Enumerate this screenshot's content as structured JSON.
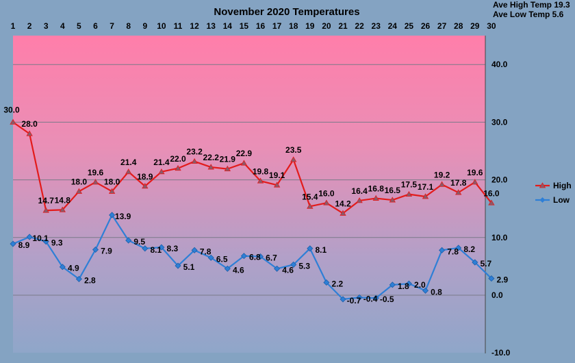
{
  "stats": {
    "ave_high": "Ave High Temp 19.3",
    "ave_low": "Ave Low Temp 5.6"
  },
  "chart_data": {
    "type": "line",
    "title": "November 2020 Temperatures",
    "categories": [
      "1",
      "2",
      "3",
      "4",
      "5",
      "6",
      "7",
      "8",
      "9",
      "10",
      "11",
      "12",
      "13",
      "14",
      "15",
      "16",
      "17",
      "18",
      "19",
      "20",
      "21",
      "22",
      "23",
      "24",
      "25",
      "26",
      "27",
      "28",
      "29",
      "30"
    ],
    "ylim": [
      -10,
      45
    ],
    "yticks": [
      -10,
      0,
      10,
      20,
      30,
      40
    ],
    "ytick_labels": [
      "-10.0",
      "0.0",
      "10.0",
      "20.0",
      "30.0",
      "40.0"
    ],
    "grid": true,
    "legend_position": "right",
    "series": [
      {
        "name": "High",
        "color": "#e31b1b",
        "marker": "triangle",
        "values": [
          30.0,
          28.0,
          14.7,
          14.8,
          18.0,
          19.6,
          18.0,
          21.4,
          18.9,
          21.4,
          22.0,
          23.2,
          22.2,
          21.9,
          22.9,
          19.8,
          19.1,
          23.5,
          15.4,
          16.0,
          14.2,
          16.4,
          16.8,
          16.5,
          17.5,
          17.1,
          19.2,
          17.8,
          19.6,
          16.0
        ]
      },
      {
        "name": "Low",
        "color": "#2e7fd6",
        "marker": "diamond",
        "values": [
          8.9,
          10.1,
          9.3,
          4.9,
          2.8,
          7.9,
          13.9,
          9.5,
          8.1,
          8.3,
          5.1,
          7.8,
          6.5,
          4.6,
          6.8,
          6.7,
          4.6,
          5.3,
          8.1,
          2.2,
          -0.7,
          -0.4,
          -0.5,
          1.8,
          2.0,
          0.8,
          7.8,
          8.2,
          5.7,
          2.9
        ]
      }
    ]
  }
}
